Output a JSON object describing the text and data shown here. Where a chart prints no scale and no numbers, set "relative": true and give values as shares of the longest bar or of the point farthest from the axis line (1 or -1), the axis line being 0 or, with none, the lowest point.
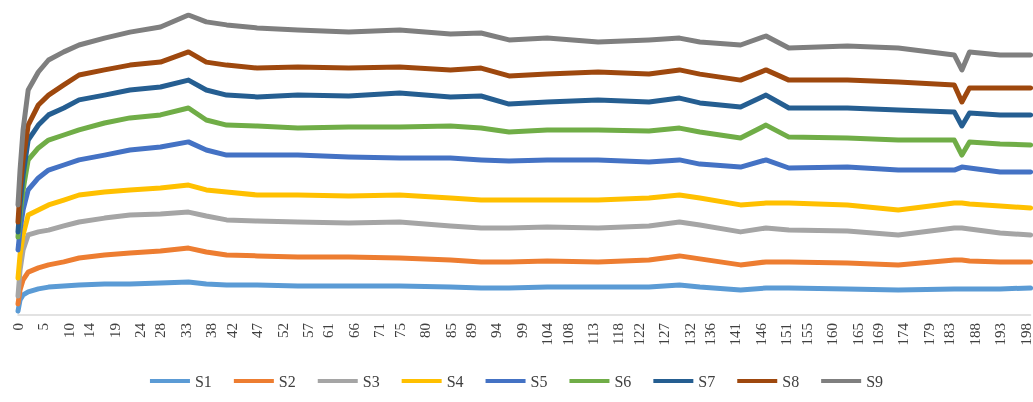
{
  "chart_data": {
    "type": "line",
    "relative": true,
    "grid": false,
    "legend": "bottom",
    "marker": "none",
    "line_style": "solid",
    "x": [
      0,
      0.4,
      1,
      2,
      4,
      6,
      9,
      12,
      17,
      22,
      28,
      33.5,
      37,
      41,
      47,
      55,
      65,
      75,
      85,
      91,
      96.5,
      104,
      114,
      124,
      130,
      134,
      142,
      147,
      151.5,
      163,
      173,
      184,
      185.5,
      187,
      193,
      199
    ],
    "xlim": [
      0,
      199
    ],
    "xticks": [
      0,
      5,
      10,
      14,
      19,
      24,
      28,
      33,
      38,
      42,
      47,
      52,
      57,
      61,
      66,
      71,
      75,
      80,
      85,
      89,
      94,
      99,
      104,
      108,
      113,
      118,
      122,
      127,
      132,
      136,
      141,
      146,
      151,
      155,
      160,
      165,
      169,
      174,
      179,
      183,
      188,
      193,
      198
    ],
    "series": [
      {
        "name": "S1",
        "color": "#5b9bd5",
        "values": [
          0.013,
          0.05,
          0.067,
          0.077,
          0.087,
          0.093,
          0.097,
          0.1,
          0.103,
          0.103,
          0.107,
          0.11,
          0.103,
          0.1,
          0.1,
          0.097,
          0.097,
          0.097,
          0.093,
          0.09,
          0.09,
          0.093,
          0.093,
          0.093,
          0.1,
          0.093,
          0.083,
          0.09,
          0.09,
          0.087,
          0.083,
          0.087,
          0.087,
          0.087,
          0.087,
          0.09
        ]
      },
      {
        "name": "S2",
        "color": "#ed7d31",
        "values": [
          0.037,
          0.083,
          0.117,
          0.143,
          0.157,
          0.167,
          0.177,
          0.19,
          0.2,
          0.207,
          0.213,
          0.223,
          0.21,
          0.2,
          0.197,
          0.193,
          0.193,
          0.19,
          0.183,
          0.177,
          0.177,
          0.18,
          0.177,
          0.183,
          0.197,
          0.187,
          0.167,
          0.177,
          0.177,
          0.173,
          0.167,
          0.183,
          0.183,
          0.18,
          0.177,
          0.177
        ]
      },
      {
        "name": "S3",
        "color": "#a5a5a5",
        "values": [
          0.063,
          0.15,
          0.217,
          0.267,
          0.277,
          0.283,
          0.297,
          0.31,
          0.323,
          0.333,
          0.337,
          0.343,
          0.33,
          0.317,
          0.313,
          0.31,
          0.307,
          0.31,
          0.297,
          0.29,
          0.29,
          0.293,
          0.29,
          0.297,
          0.31,
          0.3,
          0.277,
          0.29,
          0.283,
          0.28,
          0.267,
          0.29,
          0.29,
          0.287,
          0.273,
          0.267
        ]
      },
      {
        "name": "S4",
        "color": "#ffc000",
        "values": [
          0.123,
          0.2,
          0.267,
          0.333,
          0.35,
          0.367,
          0.383,
          0.4,
          0.41,
          0.417,
          0.423,
          0.433,
          0.417,
          0.41,
          0.4,
          0.4,
          0.397,
          0.4,
          0.39,
          0.383,
          0.383,
          0.383,
          0.383,
          0.39,
          0.4,
          0.39,
          0.367,
          0.373,
          0.373,
          0.367,
          0.35,
          0.373,
          0.373,
          0.37,
          0.363,
          0.357
        ]
      },
      {
        "name": "S5",
        "color": "#4472c4",
        "values": [
          0.217,
          0.283,
          0.35,
          0.417,
          0.457,
          0.483,
          0.5,
          0.517,
          0.533,
          0.55,
          0.56,
          0.577,
          0.55,
          0.533,
          0.533,
          0.533,
          0.527,
          0.523,
          0.523,
          0.517,
          0.513,
          0.517,
          0.517,
          0.51,
          0.517,
          0.503,
          0.493,
          0.517,
          0.49,
          0.493,
          0.483,
          0.483,
          0.493,
          0.49,
          0.477,
          0.477
        ]
      },
      {
        "name": "S6",
        "color": "#70ad47",
        "values": [
          0.26,
          0.333,
          0.417,
          0.517,
          0.557,
          0.583,
          0.6,
          0.617,
          0.64,
          0.657,
          0.667,
          0.69,
          0.65,
          0.633,
          0.63,
          0.623,
          0.627,
          0.627,
          0.63,
          0.623,
          0.61,
          0.617,
          0.617,
          0.613,
          0.623,
          0.61,
          0.59,
          0.633,
          0.593,
          0.59,
          0.583,
          0.583,
          0.533,
          0.577,
          0.57,
          0.567
        ]
      },
      {
        "name": "S7",
        "color": "#255e91",
        "values": [
          0.277,
          0.367,
          0.467,
          0.583,
          0.633,
          0.667,
          0.69,
          0.717,
          0.733,
          0.75,
          0.76,
          0.783,
          0.75,
          0.733,
          0.727,
          0.733,
          0.73,
          0.74,
          0.727,
          0.73,
          0.703,
          0.71,
          0.717,
          0.71,
          0.723,
          0.707,
          0.693,
          0.733,
          0.69,
          0.69,
          0.683,
          0.677,
          0.63,
          0.673,
          0.667,
          0.667
        ]
      },
      {
        "name": "S8",
        "color": "#9e480e",
        "values": [
          0.31,
          0.417,
          0.517,
          0.633,
          0.7,
          0.733,
          0.767,
          0.8,
          0.817,
          0.833,
          0.843,
          0.877,
          0.843,
          0.833,
          0.823,
          0.827,
          0.823,
          0.827,
          0.817,
          0.823,
          0.797,
          0.803,
          0.81,
          0.803,
          0.817,
          0.803,
          0.783,
          0.817,
          0.783,
          0.783,
          0.777,
          0.767,
          0.71,
          0.757,
          0.757,
          0.757
        ]
      },
      {
        "name": "S9",
        "color": "#7f7f7f",
        "values": [
          0.367,
          0.483,
          0.617,
          0.75,
          0.81,
          0.85,
          0.877,
          0.9,
          0.923,
          0.943,
          0.96,
          1,
          0.977,
          0.967,
          0.957,
          0.95,
          0.943,
          0.95,
          0.937,
          0.94,
          0.917,
          0.923,
          0.91,
          0.917,
          0.923,
          0.91,
          0.9,
          0.93,
          0.89,
          0.897,
          0.89,
          0.867,
          0.817,
          0.877,
          0.867,
          0.867
        ]
      }
    ]
  }
}
